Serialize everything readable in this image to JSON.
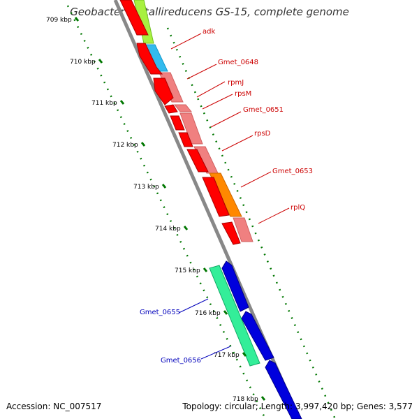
{
  "title": "Geobacter metallireducens GS-15, complete genome",
  "footer": {
    "accession": "Accession: NC_007517",
    "summary": "Topology: circular; Length: 3,997,420 bp; Genes: 3,577"
  },
  "colors": {
    "forward_cds": "#ff0000",
    "forward_rrna_like": "#f08080",
    "reverse_cds": "#0000dd",
    "backbone": "#888888",
    "scale_ticks": "#007700",
    "label_red": "#cc0000",
    "label_blue": "#0000bb"
  },
  "scale_ticks": [
    "709 kbp",
    "710 kbp",
    "711 kbp",
    "712 kbp",
    "713 kbp",
    "714 kbp",
    "715 kbp",
    "716 kbp",
    "717 kbp",
    "718 kbp"
  ],
  "genes_forward": [
    {
      "label": "adk",
      "color": "#ff0000"
    },
    {
      "label": "Gmet_0648",
      "color": "#ff0000"
    },
    {
      "label": "rpmJ",
      "color": "#ff0000"
    },
    {
      "label": "rpsM",
      "color": "#ff0000"
    },
    {
      "label": "Gmet_0651",
      "color": "#ff0000"
    },
    {
      "label": "rpsD",
      "color": "#ff0000"
    },
    {
      "label": "Gmet_0653",
      "color": "#ff0000"
    },
    {
      "label": "rplQ",
      "color": "#ff0000"
    }
  ],
  "genes_reverse": [
    {
      "label": "Gmet_0655",
      "color": "#0000dd"
    },
    {
      "label": "Gmet_0656",
      "color": "#0000dd"
    }
  ]
}
